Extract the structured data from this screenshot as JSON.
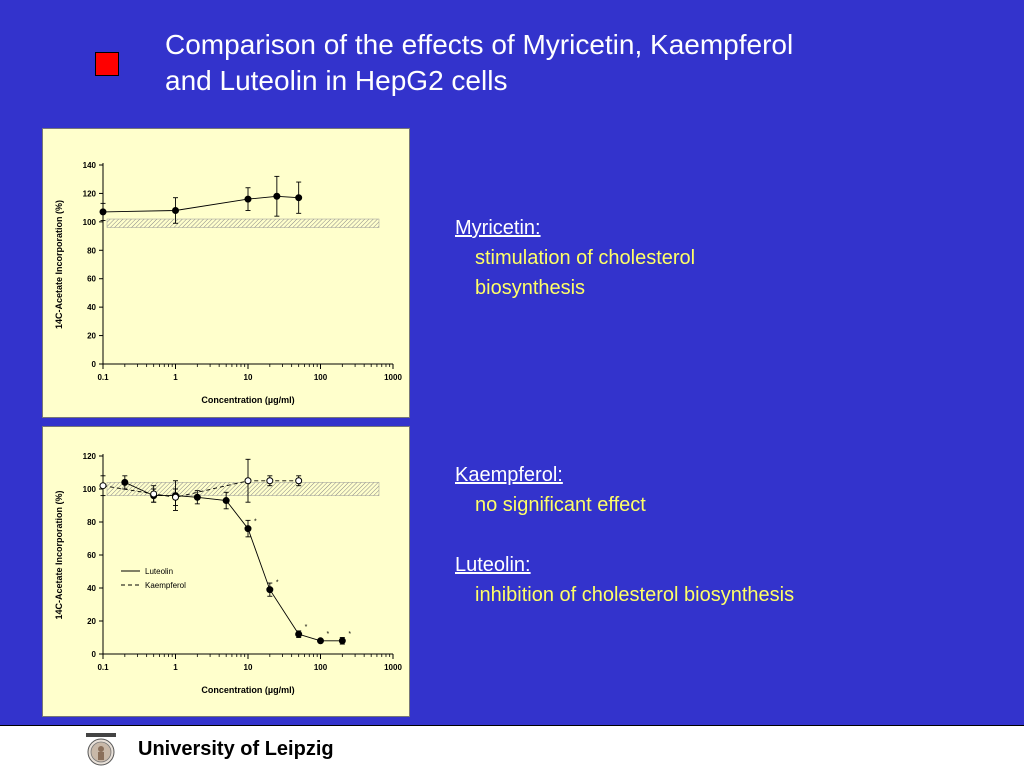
{
  "slide": {
    "title_lines": [
      "Comparison of the effects of Myricetin, Kaempferol",
      "and Luteolin in HepG2 cells"
    ],
    "colors": {
      "background": "#3333cc",
      "panel": "#ffffcc",
      "bullet": "#ff0000",
      "heading": "#ffffff",
      "body": "#ffff66"
    }
  },
  "text_blocks": [
    {
      "heading": "Myricetin:",
      "lines": [
        "stimulation of cholesterol",
        "biosynthesis"
      ]
    },
    {
      "heading": "Kaempferol:",
      "lines": [
        "no significant effect"
      ]
    },
    {
      "heading": "Luteolin:",
      "lines": [
        "inhibition of cholesterol biosynthesis"
      ]
    }
  ],
  "footer": {
    "text": "University of Leipzig",
    "logo_icon": "university-seal-icon"
  },
  "chart_data": [
    {
      "type": "line",
      "xscale": "log",
      "xlim": [
        0.1,
        1000
      ],
      "ylim": [
        0,
        140
      ],
      "xticks": [
        0.1,
        1,
        10,
        100,
        1000
      ],
      "xtick_labels": [
        "0.1",
        "1",
        "10",
        "100",
        "1000"
      ],
      "yticks": [
        0,
        20,
        40,
        60,
        80,
        100,
        120,
        140
      ],
      "xlabel": "Concentration (µg/ml)",
      "ylabel": "14C-Acetate Incorporation (%)",
      "control_band": [
        96,
        102
      ],
      "series": [
        {
          "style": "solid-filled",
          "points": [
            {
              "x": 0.1,
              "y": 107,
              "err": 6,
              "sig": false
            },
            {
              "x": 1,
              "y": 108,
              "err": 9,
              "sig": false
            },
            {
              "x": 10,
              "y": 116,
              "err": 8,
              "sig": false
            },
            {
              "x": 25,
              "y": 118,
              "err": 14,
              "sig": false
            },
            {
              "x": 50,
              "y": 117,
              "err": 11,
              "sig": false
            }
          ]
        }
      ]
    },
    {
      "type": "line",
      "xscale": "log",
      "xlim": [
        0.1,
        1000
      ],
      "ylim": [
        0,
        120
      ],
      "xticks": [
        0.1,
        1,
        10,
        100,
        1000
      ],
      "xtick_labels": [
        "0.1",
        "1",
        "10",
        "100",
        "1000"
      ],
      "yticks": [
        0,
        20,
        40,
        60,
        80,
        100,
        120
      ],
      "xlabel": "Concentration (µg/ml)",
      "ylabel": "14C-Acetate Incorporation (%)",
      "control_band": [
        96,
        104
      ],
      "legend_position": "left",
      "series": [
        {
          "name": "Luteolin",
          "style": "solid-filled",
          "points": [
            {
              "x": 0.2,
              "y": 104,
              "err": 4,
              "sig": false
            },
            {
              "x": 0.5,
              "y": 96,
              "err": 4,
              "sig": false
            },
            {
              "x": 1,
              "y": 96,
              "err": 9,
              "sig": false
            },
            {
              "x": 2,
              "y": 95,
              "err": 4,
              "sig": false
            },
            {
              "x": 5,
              "y": 93,
              "err": 5,
              "sig": false
            },
            {
              "x": 10,
              "y": 76,
              "err": 5,
              "sig": true
            },
            {
              "x": 20,
              "y": 39,
              "err": 4,
              "sig": true
            },
            {
              "x": 50,
              "y": 12,
              "err": 2,
              "sig": true
            },
            {
              "x": 100,
              "y": 8,
              "err": 1,
              "sig": true
            },
            {
              "x": 200,
              "y": 8,
              "err": 2,
              "sig": true
            }
          ]
        },
        {
          "name": "Kaempferol",
          "style": "dashed-open",
          "points": [
            {
              "x": 0.1,
              "y": 102,
              "err": 6,
              "sig": false
            },
            {
              "x": 0.5,
              "y": 97,
              "err": 5,
              "sig": false
            },
            {
              "x": 1,
              "y": 95,
              "err": 5,
              "sig": false
            },
            {
              "x": 10,
              "y": 105,
              "err": 13,
              "sig": false
            },
            {
              "x": 20,
              "y": 105,
              "err": 3,
              "sig": false
            },
            {
              "x": 50,
              "y": 105,
              "err": 3,
              "sig": false
            }
          ]
        }
      ]
    }
  ]
}
